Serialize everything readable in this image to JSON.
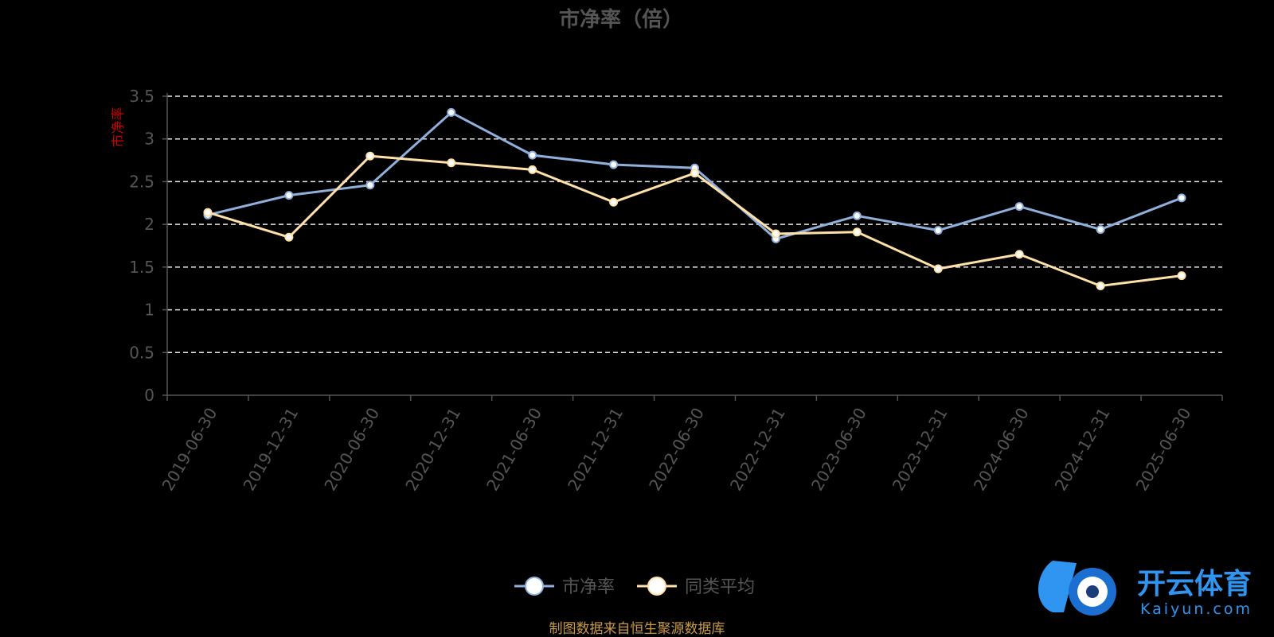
{
  "chart_data": {
    "type": "line",
    "title": "市净率（倍）",
    "ylabel": "市净率",
    "ylim": [
      0,
      3.5
    ],
    "yticks": [
      "0",
      "0.5",
      "1",
      "1.5",
      "2",
      "2.5",
      "3",
      "3.5"
    ],
    "grid": true,
    "legend_position": "bottom-center",
    "categories": [
      "2019-06-30",
      "2019-12-31",
      "2020-06-30",
      "2020-12-31",
      "2021-06-30",
      "2021-12-31",
      "2022-06-30",
      "2022-12-31",
      "2023-06-30",
      "2023-12-31",
      "2024-06-30",
      "2024-12-31",
      "2025-06-30"
    ],
    "series": [
      {
        "name": "市净率",
        "color": "#8fb0dc",
        "values": [
          2.11,
          2.34,
          2.46,
          3.31,
          2.81,
          2.7,
          2.66,
          1.83,
          2.1,
          1.93,
          2.21,
          1.94,
          2.31
        ]
      },
      {
        "name": "同类平均",
        "color": "#ffe0a6",
        "values": [
          2.14,
          1.85,
          2.8,
          2.72,
          2.64,
          2.26,
          2.6,
          1.89,
          1.91,
          1.48,
          1.65,
          1.28,
          1.4
        ]
      }
    ]
  },
  "source_note": "制图数据来自恒生聚源数据库",
  "watermark": {
    "name": "开云体育",
    "domain": "Kaiyun.com"
  }
}
